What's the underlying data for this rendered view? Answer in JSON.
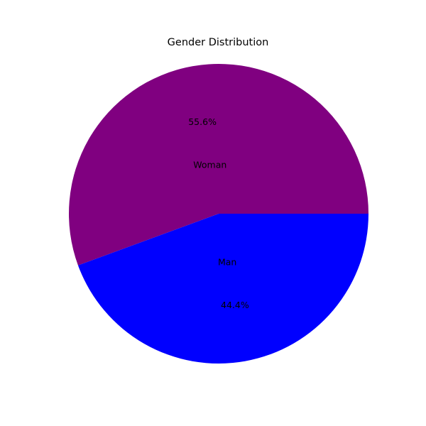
{
  "chart_data": {
    "type": "pie",
    "title": "Gender Distribution",
    "labels": [
      "Woman",
      "Man"
    ],
    "values": [
      55.6,
      44.4
    ],
    "percent_labels": [
      "55.6%",
      "44.4%"
    ],
    "colors": [
      "#800080",
      "#0000ff"
    ],
    "start_angle_deg": 0,
    "direction": "counterclockwise"
  }
}
